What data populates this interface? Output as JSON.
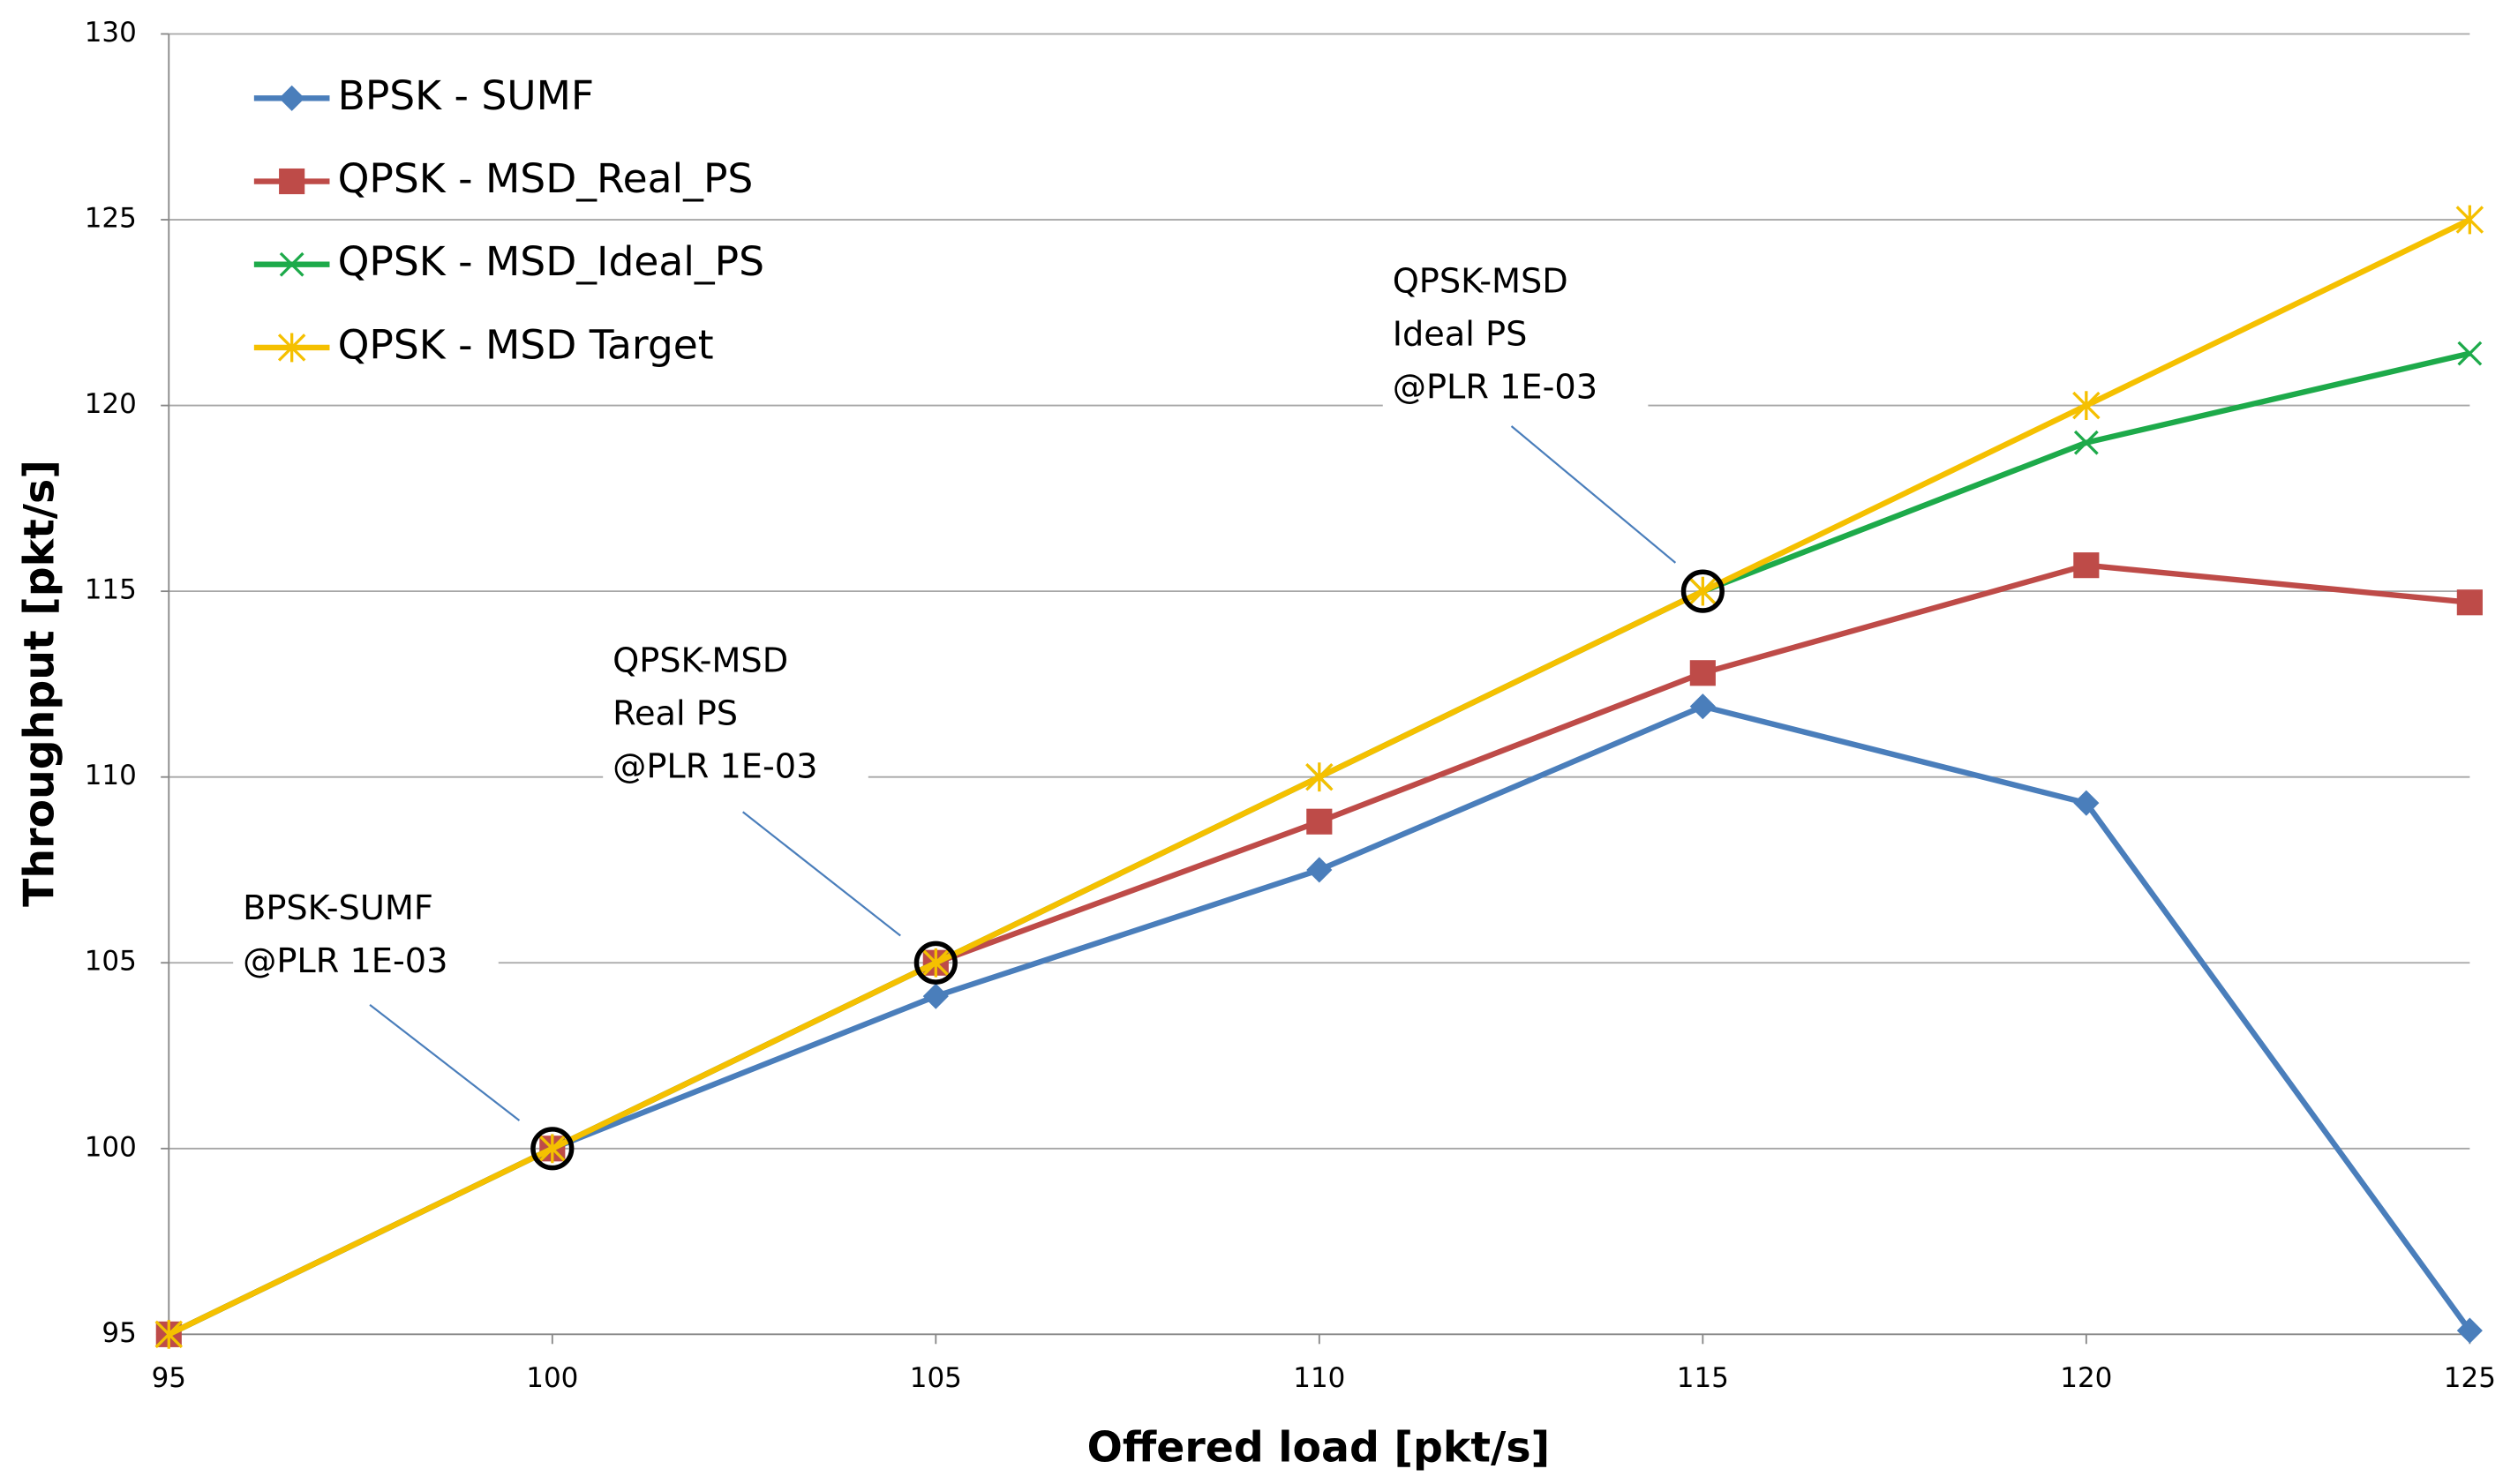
{
  "chart_data": {
    "type": "line",
    "x_label": "Offered load [pkt/s]",
    "y_label": "Throughput [pkt/s]",
    "x": [
      95,
      100,
      105,
      110,
      115,
      120,
      125
    ],
    "series": [
      {
        "name": "BPSK - SUMF",
        "color": "#4a7ebb",
        "marker": "diamond",
        "values": [
          95,
          100,
          104.1,
          107.5,
          111.9,
          109.3,
          95.1
        ]
      },
      {
        "name": "QPSK - MSD_Real_PS",
        "color": "#be4b48",
        "marker": "square",
        "values": [
          95,
          100,
          105,
          108.8,
          112.8,
          115.7,
          114.7
        ]
      },
      {
        "name": "QPSK - MSD_Ideal_PS",
        "color": "#1daa4a",
        "marker": "x",
        "values": [
          95,
          100,
          105,
          110,
          115,
          119,
          121.4
        ]
      },
      {
        "name": "QPSK - MSD Target",
        "color": "#f5c000",
        "marker": "star",
        "values": [
          95,
          100,
          105,
          110,
          115,
          120,
          125
        ]
      }
    ],
    "xlim": [
      95,
      125
    ],
    "xticks": [
      95,
      100,
      105,
      110,
      115,
      120,
      125
    ],
    "ylim": [
      95,
      130
    ],
    "yticks": [
      95,
      100,
      105,
      110,
      115,
      120,
      125,
      130
    ],
    "grid": true,
    "legend": "upper-left",
    "annotations": [
      {
        "text": [
          "BPSK-SUMF",
          "@PLR 1E-03"
        ],
        "x": 100,
        "y": 100
      },
      {
        "text": [
          "QPSK-MSD",
          "Real PS",
          "@PLR 1E-03"
        ],
        "x": 105,
        "y": 105
      },
      {
        "text": [
          "QPSK-MSD",
          "Ideal PS",
          "@PLR 1E-03"
        ],
        "x": 115,
        "y": 115
      }
    ]
  }
}
